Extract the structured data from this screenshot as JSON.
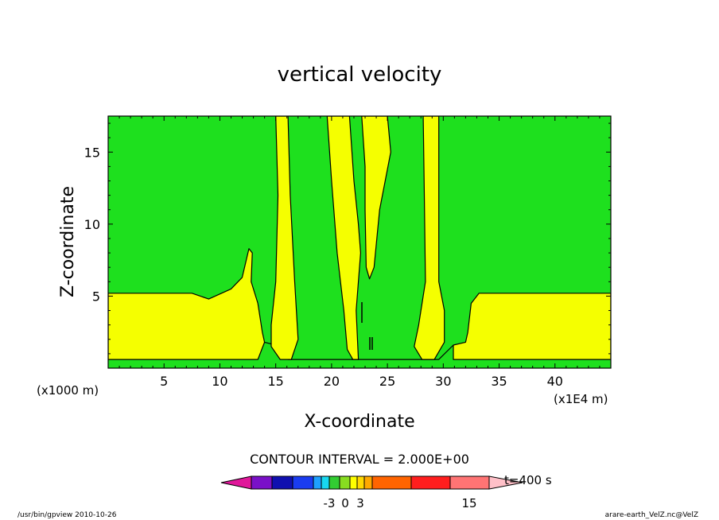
{
  "chart_data": {
    "type": "heatmap",
    "title": "vertical velocity",
    "xlabel": "X-coordinate",
    "ylabel": "Z-coordinate",
    "x_unit_label": "(x1000 m)",
    "x_scale_label": "(x1E4 m)",
    "xlim": [
      0,
      45
    ],
    "ylim": [
      0,
      17.5
    ],
    "x_ticks": [
      5,
      10,
      15,
      20,
      25,
      30,
      35,
      40
    ],
    "y_ticks": [
      5,
      10,
      15
    ],
    "contour_interval_text": "CONTOUR INTERVAL = 2.000E+00",
    "time_label": "t=400 s",
    "colorbar_tick_labels": [
      "-3",
      "0",
      "3",
      "15"
    ],
    "colorbar_colors": [
      "#e0179a",
      "#7a10c8",
      "#1010b0",
      "#1a3cf0",
      "#1ea0ff",
      "#18d8f0",
      "#32cd32",
      "#88dd20",
      "#ffff00",
      "#ffd800",
      "#ffa800",
      "#ff6400",
      "#ff1e1e",
      "#ff7474",
      "#ffc0c8"
    ],
    "field_colors": {
      "background": "#1ee01e",
      "positive": "#f5ff00"
    },
    "footer_left": "/usr/bin/gpview   2010-10-26",
    "footer_right": "arare-earth_VelZ.nc@VelZ",
    "contours": [
      {
        "name": "lower-band",
        "points": [
          [
            0,
            5.2
          ],
          [
            7.5,
            5.2
          ],
          [
            9,
            4.8
          ],
          [
            11,
            5.5
          ],
          [
            12,
            6.3
          ],
          [
            12.6,
            8.3
          ],
          [
            12.9,
            8.0
          ],
          [
            12.8,
            6.0
          ],
          [
            13.4,
            4.5
          ],
          [
            13.8,
            2.5
          ],
          [
            14,
            1.8
          ],
          [
            15,
            1.6
          ],
          [
            16.1,
            0.6
          ],
          [
            29.6,
            0.6
          ],
          [
            30.9,
            1.6
          ],
          [
            32,
            1.8
          ],
          [
            32.2,
            2.5
          ],
          [
            32.5,
            4.5
          ],
          [
            33.2,
            5.2
          ],
          [
            45,
            5.2
          ],
          [
            45,
            0.6
          ],
          [
            30.9,
            0.6
          ],
          [
            30.9,
            1.6
          ],
          [
            29.6,
            0.6
          ],
          [
            16.1,
            0.6
          ],
          [
            15,
            1.6
          ],
          [
            14,
            1.8
          ],
          [
            13.4,
            0.6
          ],
          [
            0,
            0.6
          ]
        ]
      },
      {
        "name": "column-16",
        "points": [
          [
            15.0,
            17.5
          ],
          [
            15.2,
            12
          ],
          [
            15.0,
            6
          ],
          [
            14.6,
            3
          ],
          [
            14.6,
            1.5
          ],
          [
            15.4,
            0.6
          ],
          [
            16.4,
            0.6
          ],
          [
            17.0,
            2
          ],
          [
            16.7,
            6
          ],
          [
            16.3,
            12
          ],
          [
            16.1,
            17.5
          ]
        ]
      },
      {
        "name": "column-21",
        "points": [
          [
            19.6,
            17.5
          ],
          [
            20.0,
            13
          ],
          [
            20.5,
            8
          ],
          [
            21.1,
            4
          ],
          [
            21.4,
            1.3
          ],
          [
            21.9,
            0.6
          ],
          [
            22.4,
            0.6
          ],
          [
            22.2,
            4
          ],
          [
            22.6,
            8
          ],
          [
            22.4,
            10
          ],
          [
            22.0,
            13
          ],
          [
            21.6,
            17.5
          ]
        ]
      },
      {
        "name": "column-24",
        "points": [
          [
            22.7,
            17.5
          ],
          [
            23.0,
            14
          ],
          [
            23.0,
            11
          ],
          [
            23.1,
            7
          ],
          [
            23.4,
            6.2
          ],
          [
            23.8,
            7
          ],
          [
            24.3,
            11
          ],
          [
            25.3,
            15
          ],
          [
            25.0,
            17.5
          ]
        ]
      },
      {
        "name": "column-29",
        "points": [
          [
            28.2,
            17.5
          ],
          [
            28.3,
            12
          ],
          [
            28.4,
            6
          ],
          [
            27.8,
            3
          ],
          [
            27.4,
            1.5
          ],
          [
            28.1,
            0.6
          ],
          [
            29.2,
            0.6
          ],
          [
            30.1,
            1.8
          ],
          [
            30.1,
            4
          ],
          [
            29.6,
            6
          ],
          [
            29.6,
            12
          ],
          [
            29.6,
            17.5
          ]
        ]
      }
    ]
  }
}
